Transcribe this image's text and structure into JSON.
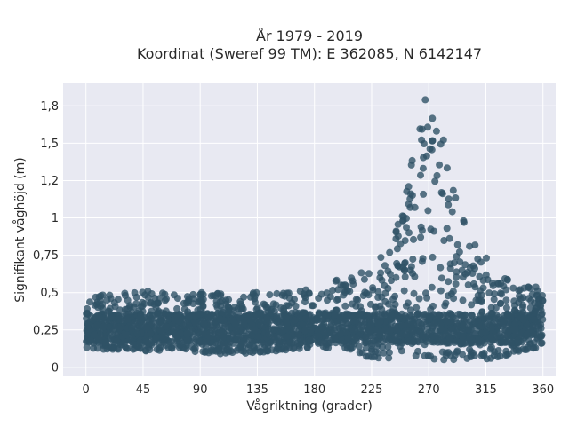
{
  "chart_data": {
    "type": "scatter",
    "title": "År 1979 - 2019",
    "subtitle": "Koordinat (Sweref 99 TM): E 362085, N 6142147",
    "xlabel": "Vågriktning (grader)",
    "ylabel": "Signifikant våghöjd (m)",
    "xlim": [
      -18,
      370
    ],
    "ylim": [
      -0.06,
      1.9
    ],
    "x_ticks": [
      0,
      45,
      90,
      135,
      180,
      225,
      270,
      315,
      360
    ],
    "x_tick_labels": [
      "0",
      "45",
      "90",
      "135",
      "180",
      "225",
      "270",
      "315",
      "360"
    ],
    "y_ticks": [
      0,
      0.25,
      0.5,
      0.75,
      1,
      1.25,
      1.5,
      1.75
    ],
    "y_tick_labels": [
      "0",
      "0,25",
      "0,5",
      "0,75",
      "1",
      "1,2",
      "1,5",
      "1,8"
    ],
    "grid": true,
    "marker_color": "#2f5266",
    "envelope": {
      "direction": [
        0,
        15,
        30,
        45,
        60,
        75,
        90,
        105,
        120,
        135,
        150,
        165,
        180,
        195,
        210,
        225,
        235,
        245,
        255,
        262,
        268,
        272,
        278,
        285,
        292,
        300,
        310,
        320,
        330,
        340,
        350,
        360
      ],
      "height_min": [
        0.13,
        0.12,
        0.12,
        0.11,
        0.11,
        0.1,
        0.1,
        0.09,
        0.09,
        0.1,
        0.11,
        0.12,
        0.13,
        0.13,
        0.12,
        0.05,
        0.05,
        0.05,
        0.05,
        0.05,
        0.05,
        0.05,
        0.05,
        0.05,
        0.05,
        0.05,
        0.05,
        0.06,
        0.08,
        0.1,
        0.12,
        0.13
      ],
      "height_max": [
        0.52,
        0.5,
        0.5,
        0.52,
        0.5,
        0.5,
        0.5,
        0.5,
        0.49,
        0.5,
        0.51,
        0.52,
        0.55,
        0.58,
        0.62,
        0.66,
        0.78,
        0.98,
        1.3,
        1.62,
        1.82,
        1.88,
        1.7,
        1.38,
        1.12,
        0.92,
        0.8,
        0.72,
        0.62,
        0.56,
        0.55,
        0.55
      ]
    }
  }
}
